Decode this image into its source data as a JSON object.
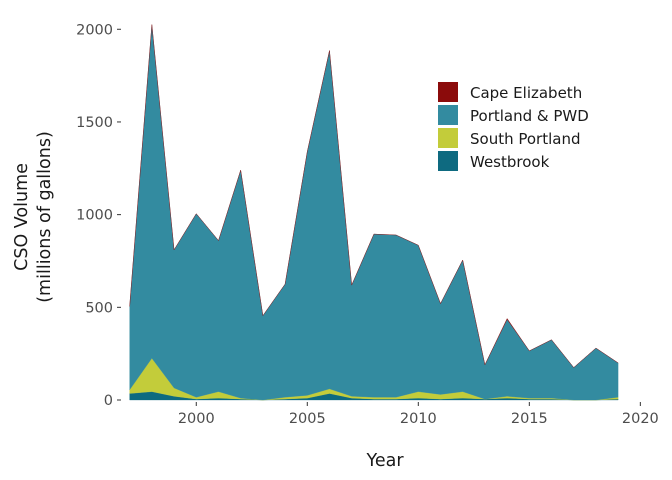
{
  "chart_data": {
    "type": "area",
    "stacked": true,
    "xlabel": "Year",
    "ylabel_lines": [
      "CSO Volume",
      "(millions of gallons)"
    ],
    "xlim": [
      1996.7,
      2020.3
    ],
    "ylim": [
      0,
      2050
    ],
    "x_ticks": [
      2000,
      2005,
      2010,
      2015,
      2020
    ],
    "y_ticks": [
      0,
      500,
      1000,
      1500,
      2000
    ],
    "grid": false,
    "legend_position": "top-right",
    "x": [
      1997,
      1998,
      1999,
      2000,
      2001,
      2002,
      2003,
      2004,
      2005,
      2006,
      2007,
      2008,
      2009,
      2010,
      2011,
      2012,
      2013,
      2014,
      2015,
      2016,
      2017,
      2018,
      2019
    ],
    "series": [
      {
        "name": "Westbrook",
        "color": "#0e6a80",
        "values": [
          35,
          45,
          20,
          5,
          10,
          5,
          0,
          5,
          10,
          35,
          10,
          5,
          5,
          10,
          5,
          10,
          5,
          10,
          5,
          5,
          0,
          0,
          5
        ]
      },
      {
        "name": "South Portland",
        "color": "#c3cc3a",
        "values": [
          20,
          180,
          45,
          10,
          35,
          5,
          0,
          10,
          15,
          25,
          10,
          10,
          10,
          35,
          25,
          35,
          0,
          10,
          5,
          5,
          0,
          0,
          10
        ]
      },
      {
        "name": "Portland & PWD",
        "color": "#338ba0",
        "values": [
          450,
          1800,
          745,
          990,
          815,
          1230,
          455,
          610,
          1315,
          1825,
          600,
          880,
          875,
          790,
          490,
          710,
          185,
          415,
          255,
          315,
          175,
          280,
          185
        ]
      },
      {
        "name": "Cape Elizabeth",
        "color": "#8b0b0b",
        "values": [
          0,
          0,
          0,
          0,
          0,
          0,
          0,
          0,
          0,
          0,
          0,
          0,
          0,
          0,
          0,
          0,
          0,
          5,
          0,
          0,
          0,
          0,
          0
        ]
      }
    ],
    "legend_order": [
      "Cape Elizabeth",
      "Portland & PWD",
      "South Portland",
      "Westbrook"
    ]
  }
}
